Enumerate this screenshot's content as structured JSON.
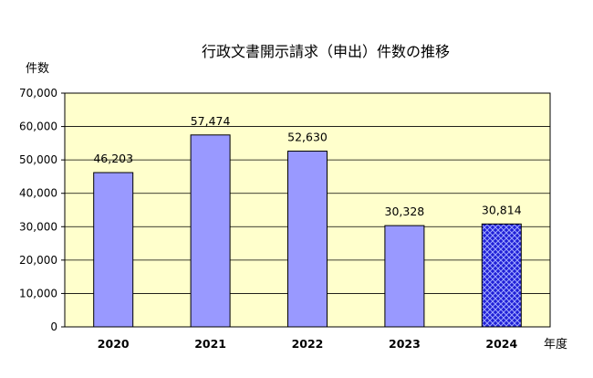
{
  "chart_data": {
    "type": "bar",
    "title": "行政文書開示請求（申出）件数の推移",
    "ylabel": "件数",
    "xlabel": "年度",
    "categories": [
      "2020",
      "2021",
      "2022",
      "2023",
      "2024"
    ],
    "values": [
      46203,
      57474,
      52630,
      30328,
      30814
    ],
    "data_labels": [
      "46,203",
      "57,474",
      "52,630",
      "30,328",
      "30,814"
    ],
    "ylim": [
      0,
      70000
    ],
    "yticks": [
      0,
      10000,
      20000,
      30000,
      40000,
      50000,
      60000,
      70000
    ],
    "ytick_labels": [
      "0",
      "10,000",
      "20,000",
      "30,000",
      "40,000",
      "50,000",
      "60,000",
      "70,000"
    ],
    "grid": true,
    "colors": {
      "plot_background": "#ffffcc",
      "bar": "#9999ff",
      "highlight_bar": "#1f1fd6",
      "gridline": "#000000"
    },
    "highlight": {
      "category": "2024",
      "pattern": "crosshatch"
    }
  }
}
